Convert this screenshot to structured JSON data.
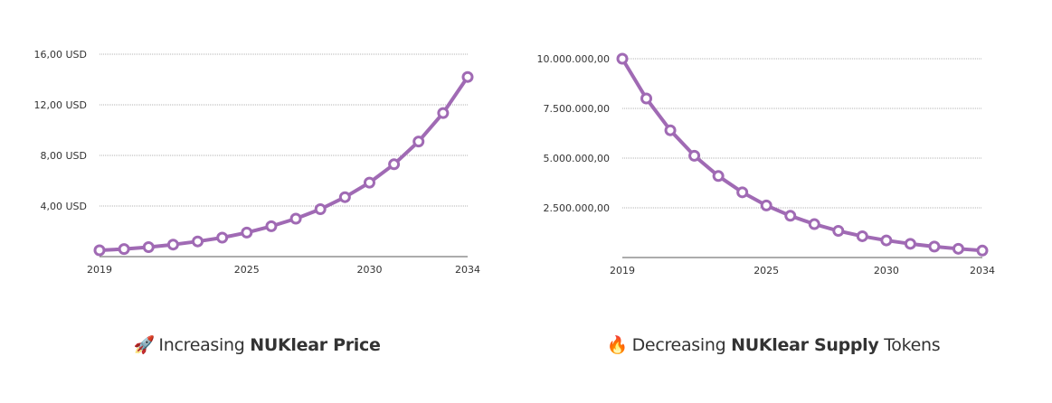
{
  "chart_data": [
    {
      "type": "line",
      "title": "",
      "xlabel": "",
      "ylabel": "",
      "x": [
        2019,
        2020,
        2021,
        2022,
        2023,
        2024,
        2025,
        2026,
        2027,
        2028,
        2029,
        2030,
        2031,
        2032,
        2033,
        2034
      ],
      "series": [
        {
          "values": [
            0.5,
            0.6,
            0.75,
            0.95,
            1.2,
            1.5,
            1.9,
            2.4,
            3.0,
            3.75,
            4.7,
            5.85,
            7.3,
            9.1,
            11.35,
            14.2
          ]
        }
      ],
      "ylim": [
        0,
        16
      ],
      "y_ticks": [
        4,
        8,
        12,
        16
      ],
      "y_tick_labels": [
        "4,00 USD",
        "8,00 USD",
        "12,00 USD",
        "16,00 USD"
      ],
      "x_ticks": [
        2019,
        2025,
        2030,
        2034
      ],
      "x_tick_labels": [
        "2019",
        "2025",
        "2030",
        "2034"
      ],
      "grid": true,
      "color": "#a06ab4"
    },
    {
      "type": "line",
      "title": "",
      "xlabel": "",
      "ylabel": "",
      "x": [
        2019,
        2020,
        2021,
        2022,
        2023,
        2024,
        2025,
        2026,
        2027,
        2028,
        2029,
        2030,
        2031,
        2032,
        2033,
        2034
      ],
      "series": [
        {
          "values": [
            10000000,
            8000000,
            6400000,
            5120000,
            4100000,
            3280000,
            2620000,
            2100000,
            1680000,
            1340000,
            1070000,
            860000,
            690000,
            550000,
            440000,
            350000
          ]
        }
      ],
      "ylim": [
        0,
        10000000
      ],
      "y_ticks": [
        2500000,
        5000000,
        7500000,
        10000000
      ],
      "y_tick_labels": [
        "2.500.000,00",
        "5.000.000,00",
        "7.500.000,00",
        "10.000.000,00"
      ],
      "x_ticks": [
        2019,
        2025,
        2030,
        2034
      ],
      "x_tick_labels": [
        "2019",
        "2025",
        "2030",
        "2034"
      ],
      "grid": true,
      "color": "#a06ab4"
    }
  ],
  "captions": {
    "price": {
      "emoji": "🚀",
      "pre": "Increasing ",
      "bold": "NUKlear Price",
      "post": ""
    },
    "supply": {
      "emoji": "🔥",
      "pre": "Decreasing ",
      "bold": "NUKlear Supply",
      "post": " Tokens"
    }
  },
  "icons": {
    "price": "rocket-icon",
    "supply": "fire-icon"
  }
}
